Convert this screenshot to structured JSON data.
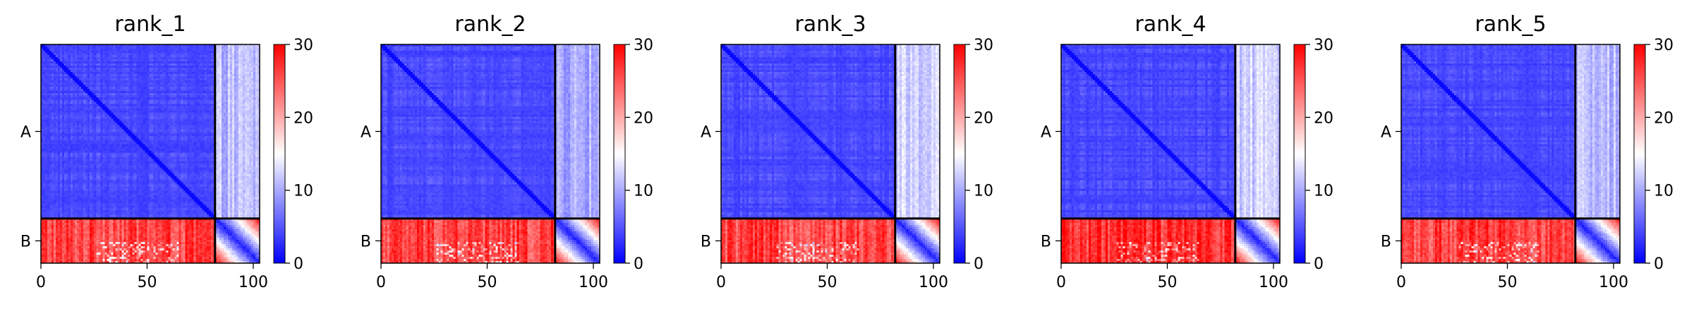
{
  "chart_data": [
    {
      "type": "heatmap",
      "title": "rank_1",
      "chain_labels": [
        "A",
        "B"
      ],
      "chain_boundary": 82,
      "length": 103,
      "xticks": [
        "0",
        "50",
        "100"
      ],
      "colorbar": {
        "vmin": 0,
        "vmax": 30,
        "ticks": [
          "0",
          "10",
          "20",
          "30"
        ],
        "colors": {
          "low": "#0000ff",
          "mid": "#ffffff",
          "high": "#ff0000"
        }
      },
      "block_means": {
        "AA": 3,
        "AB": 11,
        "BA": 26,
        "BB": 8
      }
    },
    {
      "type": "heatmap",
      "title": "rank_2",
      "chain_labels": [
        "A",
        "B"
      ],
      "chain_boundary": 82,
      "length": 103,
      "xticks": [
        "0",
        "50",
        "100"
      ],
      "colorbar": {
        "vmin": 0,
        "vmax": 30,
        "ticks": [
          "0",
          "10",
          "20",
          "30"
        ],
        "colors": {
          "low": "#0000ff",
          "mid": "#ffffff",
          "high": "#ff0000"
        }
      },
      "block_means": {
        "AA": 3,
        "AB": 10,
        "BA": 26,
        "BB": 8
      }
    },
    {
      "type": "heatmap",
      "title": "rank_3",
      "chain_labels": [
        "A",
        "B"
      ],
      "chain_boundary": 82,
      "length": 103,
      "xticks": [
        "0",
        "50",
        "100"
      ],
      "colorbar": {
        "vmin": 0,
        "vmax": 30,
        "ticks": [
          "0",
          "10",
          "20",
          "30"
        ],
        "colors": {
          "low": "#0000ff",
          "mid": "#ffffff",
          "high": "#ff0000"
        }
      },
      "block_means": {
        "AA": 3,
        "AB": 12,
        "BA": 26,
        "BB": 8
      }
    },
    {
      "type": "heatmap",
      "title": "rank_4",
      "chain_labels": [
        "A",
        "B"
      ],
      "chain_boundary": 82,
      "length": 103,
      "xticks": [
        "0",
        "50",
        "100"
      ],
      "colorbar": {
        "vmin": 0,
        "vmax": 30,
        "ticks": [
          "0",
          "10",
          "20",
          "30"
        ],
        "colors": {
          "low": "#0000ff",
          "mid": "#ffffff",
          "high": "#ff0000"
        }
      },
      "block_means": {
        "AA": 3,
        "AB": 12,
        "BA": 27,
        "BB": 8
      }
    },
    {
      "type": "heatmap",
      "title": "rank_5",
      "chain_labels": [
        "A",
        "B"
      ],
      "chain_boundary": 82,
      "length": 103,
      "xticks": [
        "0",
        "50",
        "100"
      ],
      "colorbar": {
        "vmin": 0,
        "vmax": 30,
        "ticks": [
          "0",
          "10",
          "20",
          "30"
        ],
        "colors": {
          "low": "#0000ff",
          "mid": "#ffffff",
          "high": "#ff0000"
        }
      },
      "block_means": {
        "AA": 3,
        "AB": 11,
        "BA": 26,
        "BB": 8
      }
    }
  ]
}
